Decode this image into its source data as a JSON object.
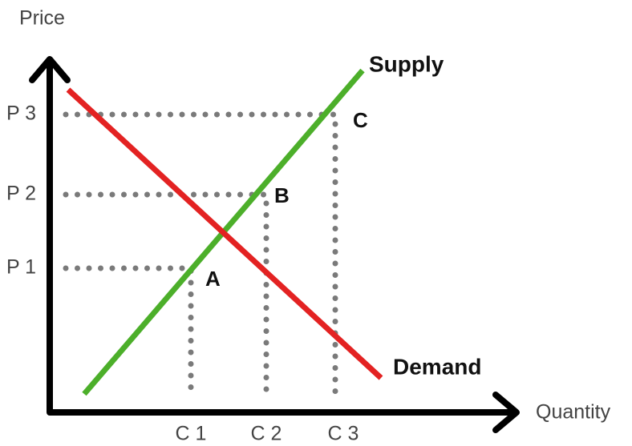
{
  "axes": {
    "y_label": "Price",
    "x_label": "Quantity"
  },
  "price_levels": [
    "P 1",
    "P 2",
    "P 3"
  ],
  "quantity_levels": [
    "C 1",
    "C 2",
    "C 3"
  ],
  "points": [
    "A",
    "B",
    "C"
  ],
  "curves": {
    "supply": "Supply",
    "demand": "Demand"
  }
}
